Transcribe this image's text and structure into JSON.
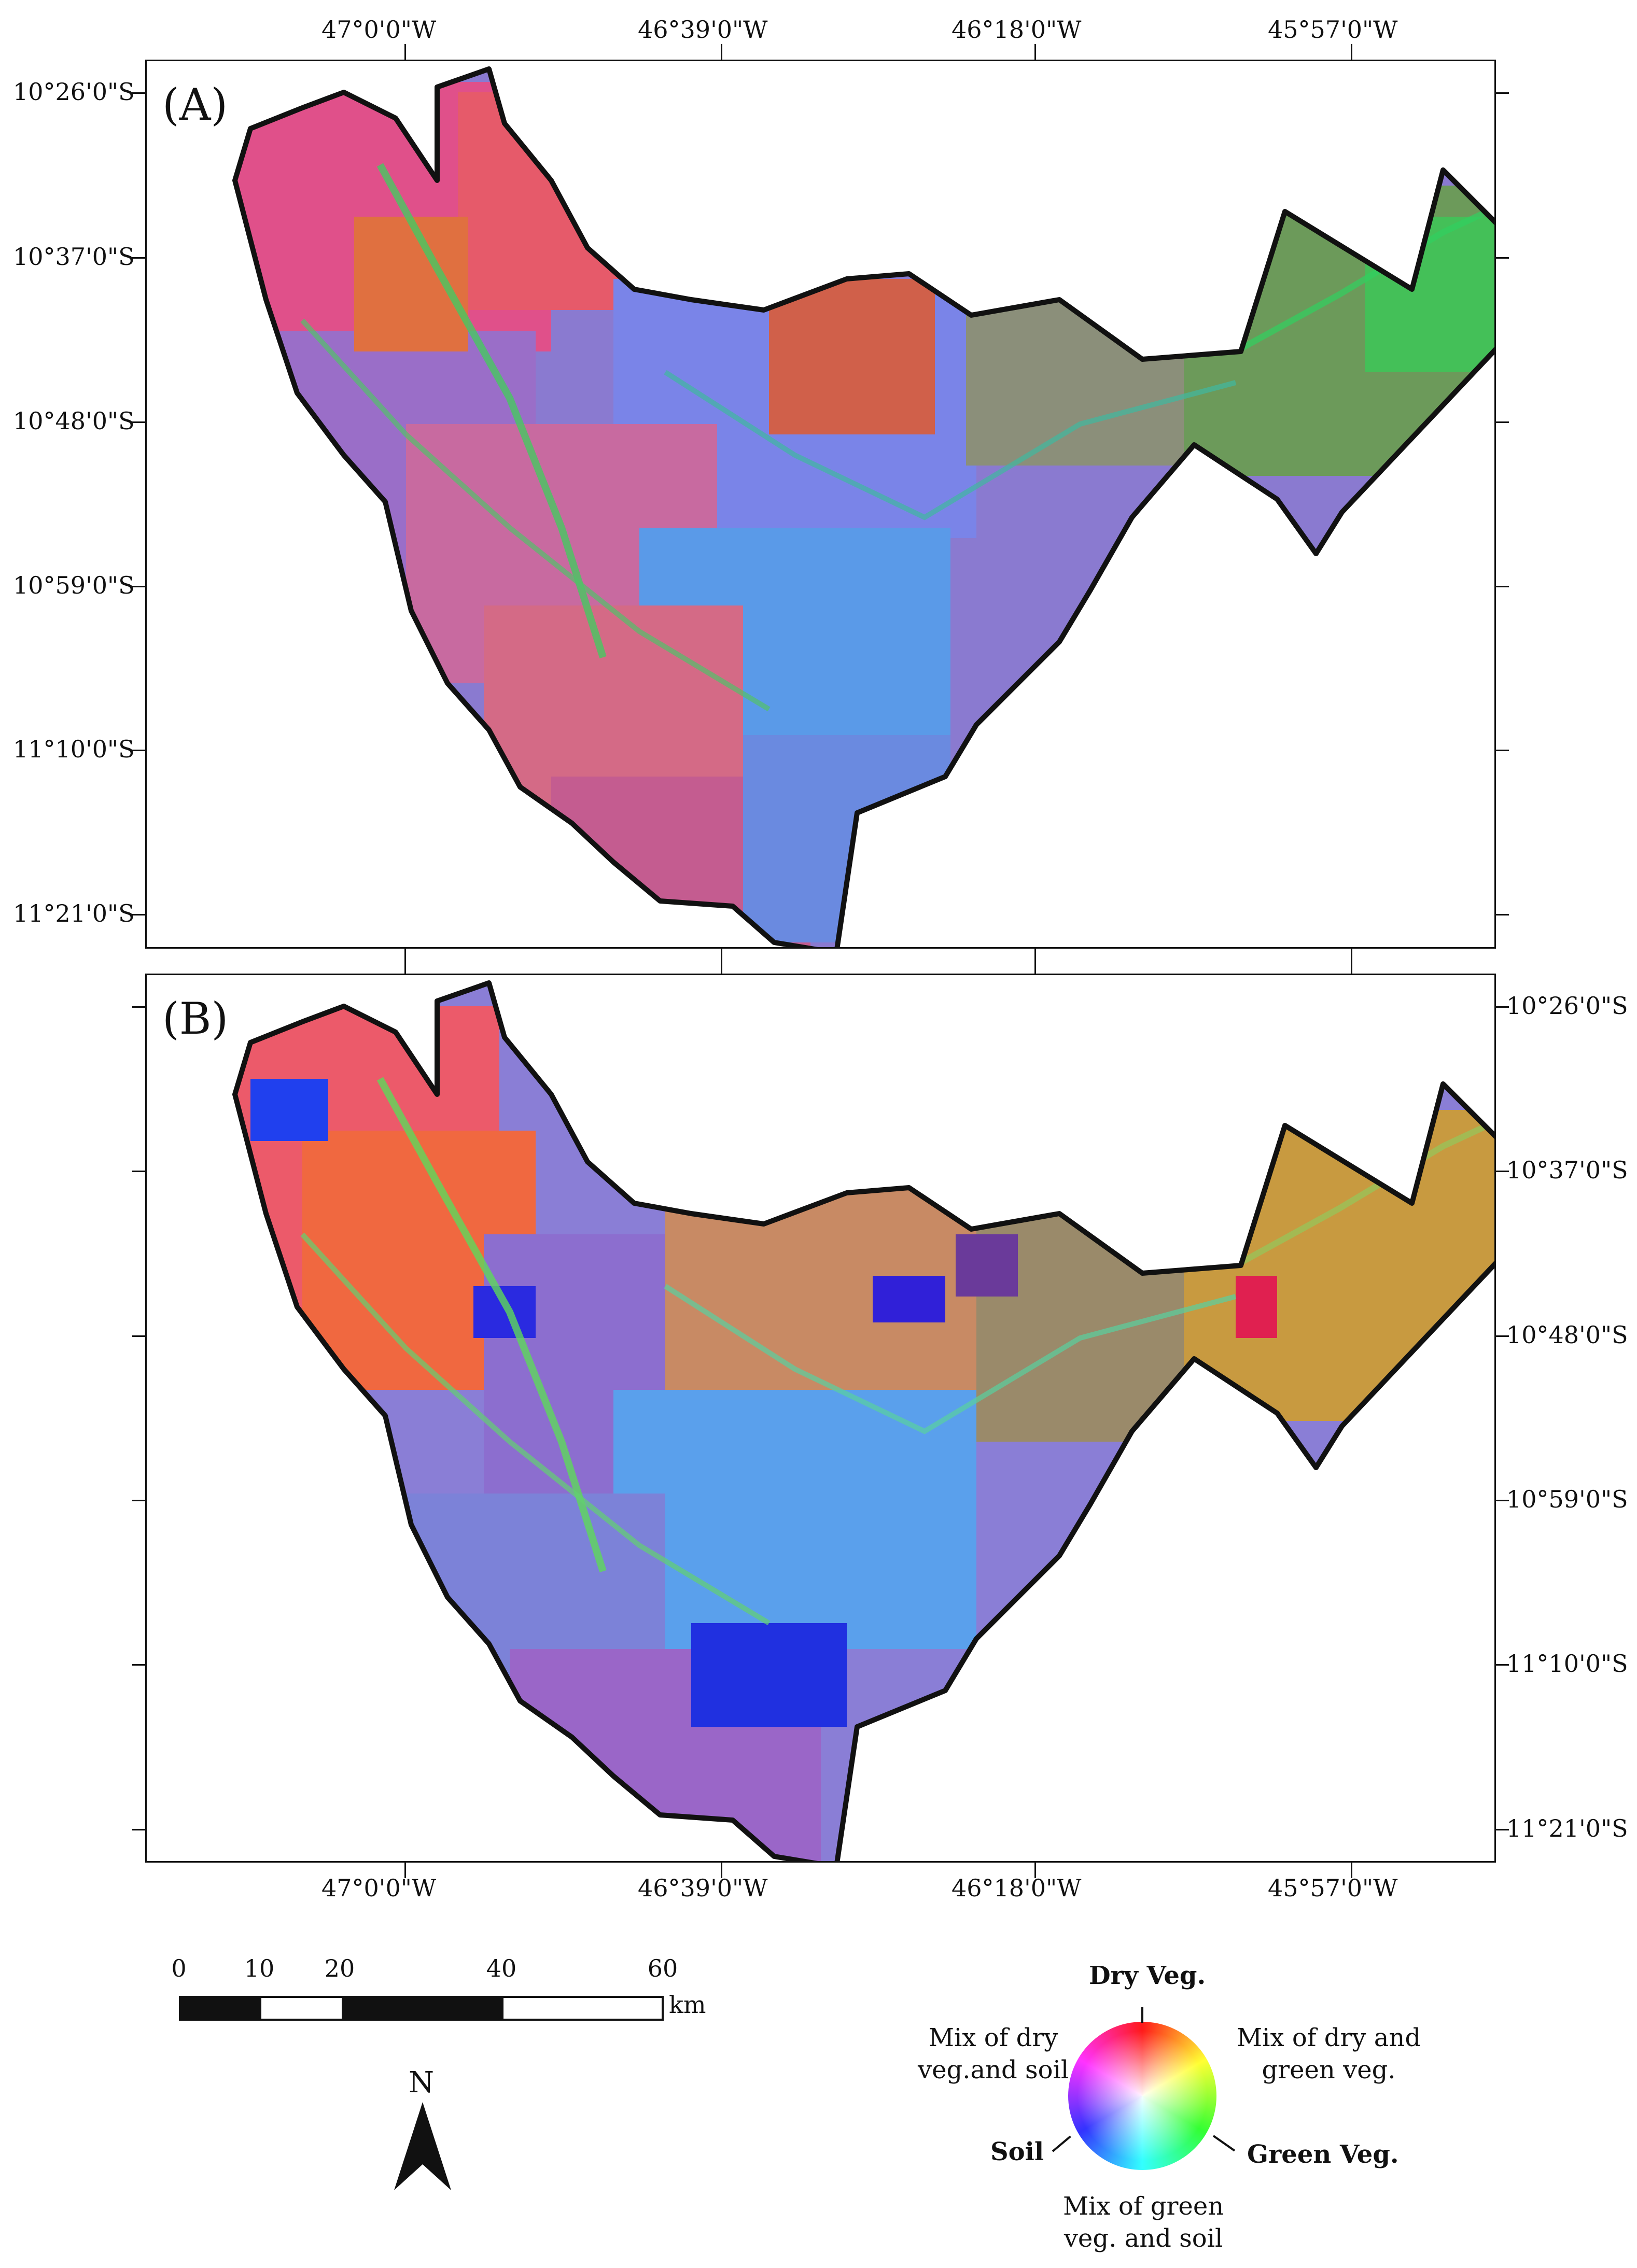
{
  "panels": {
    "a": {
      "label": "(A)"
    },
    "b": {
      "label": "(B)"
    }
  },
  "axes": {
    "longitudes": [
      "47°0'0\"W",
      "46°39'0\"W",
      "46°18'0\"W",
      "45°57'0\"W"
    ],
    "latitudes": [
      "10°26'0\"S",
      "10°37'0\"S",
      "10°48'0\"S",
      "10°59'0\"S",
      "11°10'0\"S",
      "11°21'0\"S"
    ]
  },
  "scale_bar": {
    "ticks": [
      "0",
      "10",
      "20",
      "40",
      "60"
    ],
    "unit": "km"
  },
  "north_arrow": {
    "letter": "N"
  },
  "legend": {
    "dry_veg": "Dry Veg.",
    "mix_dry_soil_line1": "Mix of dry",
    "mix_dry_soil_line2": "veg.and soil",
    "mix_dry_green_line1": "Mix of dry and",
    "mix_dry_green_line2": "green veg.",
    "soil": "Soil",
    "green_veg": "Green Veg.",
    "mix_green_soil_line1": "Mix of green",
    "mix_green_soil_line2": "veg. and soil"
  },
  "colors": {
    "dry_veg": "#ff2020",
    "green_veg": "#30e050",
    "soil": "#3050ff",
    "outline": "#111111"
  }
}
